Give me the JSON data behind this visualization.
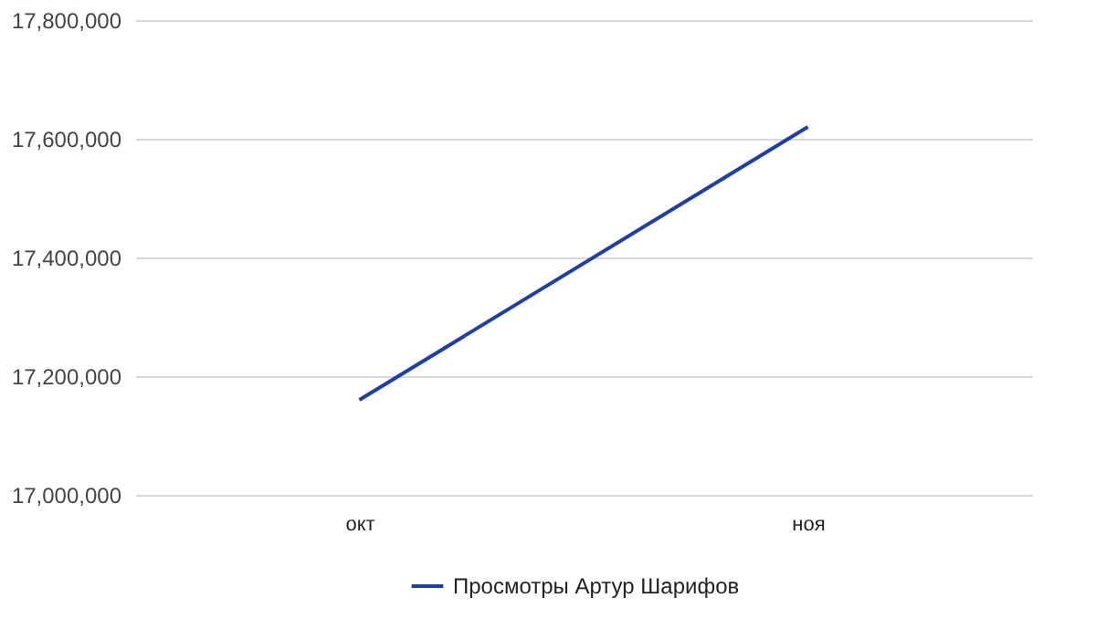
{
  "chart_data": {
    "type": "line",
    "categories": [
      "окт",
      "ноя"
    ],
    "series": [
      {
        "name": "Просмотры Артур Шарифов",
        "color": "#1f3fa8",
        "values": [
          17160000,
          17620000
        ]
      }
    ],
    "ylim": [
      17000000,
      17800000
    ],
    "yticks": [
      {
        "value": 17000000,
        "label": "17,000,000"
      },
      {
        "value": 17200000,
        "label": "17,200,000"
      },
      {
        "value": 17400000,
        "label": "17,400,000"
      },
      {
        "value": 17600000,
        "label": "17,600,000"
      },
      {
        "value": 17800000,
        "label": "17,800,000"
      }
    ],
    "grid": "y",
    "legend": "bottom",
    "marker": "none",
    "line_style": "solid"
  }
}
